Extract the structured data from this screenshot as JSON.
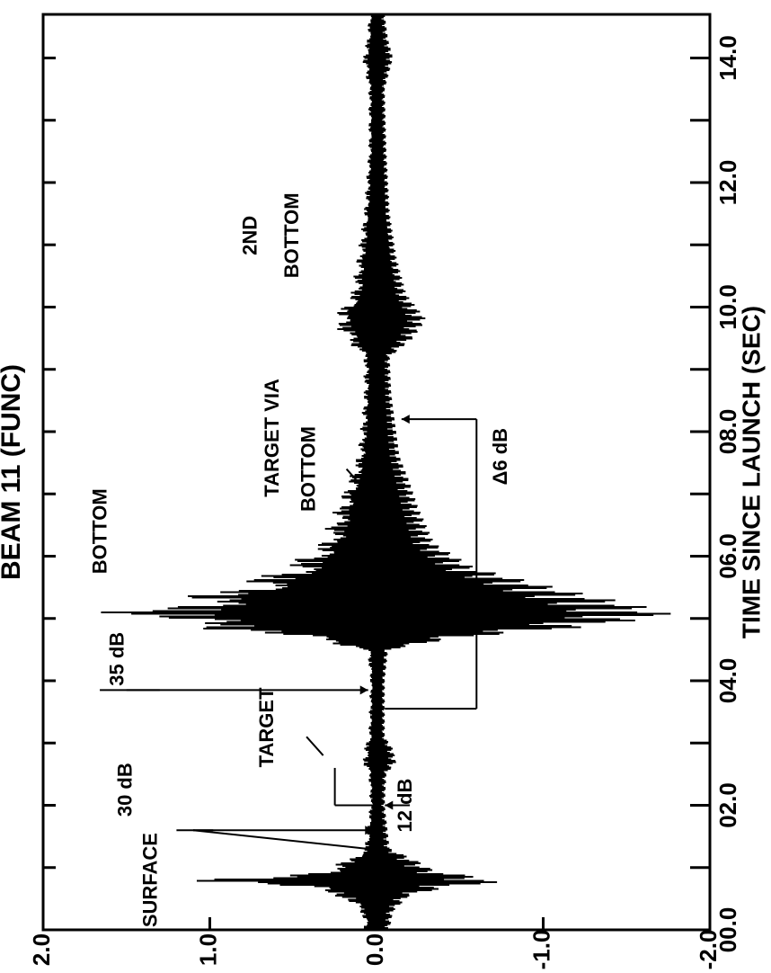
{
  "chart_data": {
    "type": "line",
    "title": "BEAM 11 (FUNC)",
    "xlabel": "TIME SINCE LAUNCH (SEC)",
    "ylabel": "",
    "xlim": [
      0,
      14.7
    ],
    "ylim": [
      -2.0,
      2.0
    ],
    "x_tick_labels": [
      {
        "value": 0.0,
        "label": "00.0"
      },
      {
        "value": 2.0,
        "label": "02.0"
      },
      {
        "value": 4.0,
        "label": "04.0"
      },
      {
        "value": 6.0,
        "label": "06.0"
      },
      {
        "value": 8.0,
        "label": "08.0"
      },
      {
        "value": 10.0,
        "label": "10.0"
      },
      {
        "value": 12.0,
        "label": "12.0"
      },
      {
        "value": 14.0,
        "label": "14.0"
      }
    ],
    "x_minor_ticks": [
      1.0,
      3.0,
      5.0,
      7.0,
      9.0,
      11.0,
      13.0
    ],
    "y_tick_labels": [
      {
        "value": 2.0,
        "label": "2.0"
      },
      {
        "value": 1.0,
        "label": "1.0"
      },
      {
        "value": 0.0,
        "label": "0.0"
      },
      {
        "value": -1.0,
        "label": "-1.0"
      },
      {
        "value": -2.0,
        "label": "-2.0"
      }
    ],
    "grid": false,
    "series": [
      {
        "color": "#000000",
        "envelope": [
          {
            "x": 0.0,
            "max": 0.08,
            "min": -0.08
          },
          {
            "x": 0.3,
            "max": 0.1,
            "min": -0.1
          },
          {
            "x": 0.55,
            "max": 0.25,
            "min": -0.2
          },
          {
            "x": 0.7,
            "max": 0.55,
            "min": -0.45
          },
          {
            "x": 0.78,
            "max": 1.2,
            "min": -0.8
          },
          {
            "x": 0.85,
            "max": 0.7,
            "min": -0.6
          },
          {
            "x": 0.95,
            "max": 0.35,
            "min": -0.35
          },
          {
            "x": 1.1,
            "max": 0.2,
            "min": -0.25
          },
          {
            "x": 1.3,
            "max": 0.08,
            "min": -0.08
          },
          {
            "x": 2.0,
            "max": 0.04,
            "min": -0.05
          },
          {
            "x": 2.5,
            "max": 0.05,
            "min": -0.06
          },
          {
            "x": 2.7,
            "max": 0.09,
            "min": -0.12
          },
          {
            "x": 2.9,
            "max": 0.08,
            "min": -0.1
          },
          {
            "x": 3.1,
            "max": 0.05,
            "min": -0.05
          },
          {
            "x": 4.0,
            "max": 0.04,
            "min": -0.05
          },
          {
            "x": 4.5,
            "max": 0.06,
            "min": -0.07
          },
          {
            "x": 4.7,
            "max": 0.5,
            "min": -0.5
          },
          {
            "x": 4.85,
            "max": 1.1,
            "min": -1.2
          },
          {
            "x": 5.05,
            "max": 1.75,
            "min": -1.8
          },
          {
            "x": 5.2,
            "max": 1.45,
            "min": -1.6
          },
          {
            "x": 5.45,
            "max": 1.0,
            "min": -1.15
          },
          {
            "x": 5.8,
            "max": 0.6,
            "min": -0.6
          },
          {
            "x": 6.2,
            "max": 0.35,
            "min": -0.35
          },
          {
            "x": 6.8,
            "max": 0.25,
            "min": -0.25
          },
          {
            "x": 7.2,
            "max": 0.18,
            "min": -0.2
          },
          {
            "x": 7.6,
            "max": 0.12,
            "min": -0.14
          },
          {
            "x": 8.0,
            "max": 0.1,
            "min": -0.12
          },
          {
            "x": 8.6,
            "max": 0.08,
            "min": -0.09
          },
          {
            "x": 9.2,
            "max": 0.08,
            "min": -0.08
          },
          {
            "x": 9.5,
            "max": 0.2,
            "min": -0.22
          },
          {
            "x": 9.8,
            "max": 0.28,
            "min": -0.3
          },
          {
            "x": 10.2,
            "max": 0.16,
            "min": -0.18
          },
          {
            "x": 10.8,
            "max": 0.12,
            "min": -0.12
          },
          {
            "x": 11.5,
            "max": 0.08,
            "min": -0.08
          },
          {
            "x": 12.5,
            "max": 0.05,
            "min": -0.06
          },
          {
            "x": 13.5,
            "max": 0.05,
            "min": -0.05
          },
          {
            "x": 14.0,
            "max": 0.09,
            "min": -0.1
          },
          {
            "x": 14.3,
            "max": 0.06,
            "min": -0.07
          },
          {
            "x": 14.7,
            "max": 0.05,
            "min": -0.05
          }
        ]
      }
    ],
    "annotations": [
      {
        "id": "surface",
        "text": "SURFACE",
        "x": 0.8,
        "y": 1.35
      },
      {
        "id": "30db",
        "text": "30 dB",
        "x": 2.25,
        "y": 1.5
      },
      {
        "id": "target",
        "text": "TARGET",
        "x": 3.25,
        "y": 0.65
      },
      {
        "id": "12db",
        "text": "12 dB",
        "x": 2.0,
        "y": -0.18
      },
      {
        "id": "35db",
        "text": "35 dB",
        "x": 4.35,
        "y": 1.55
      },
      {
        "id": "bottom",
        "text": "BOTTOM",
        "x": 6.4,
        "y": 1.65
      },
      {
        "id": "target_via_line1",
        "text": "TARGET VIA",
        "x": 7.9,
        "y": 0.62
      },
      {
        "id": "target_via_line2",
        "text": "BOTTOM",
        "x": 7.4,
        "y": 0.4
      },
      {
        "id": "delta6db",
        "text": "Δ6 dB",
        "x": 7.6,
        "y": -0.75
      },
      {
        "id": "2nd_line1",
        "text": "2ND",
        "x": 11.15,
        "y": 0.75
      },
      {
        "id": "2nd_line2",
        "text": "BOTTOM",
        "x": 11.15,
        "y": 0.5
      }
    ]
  }
}
